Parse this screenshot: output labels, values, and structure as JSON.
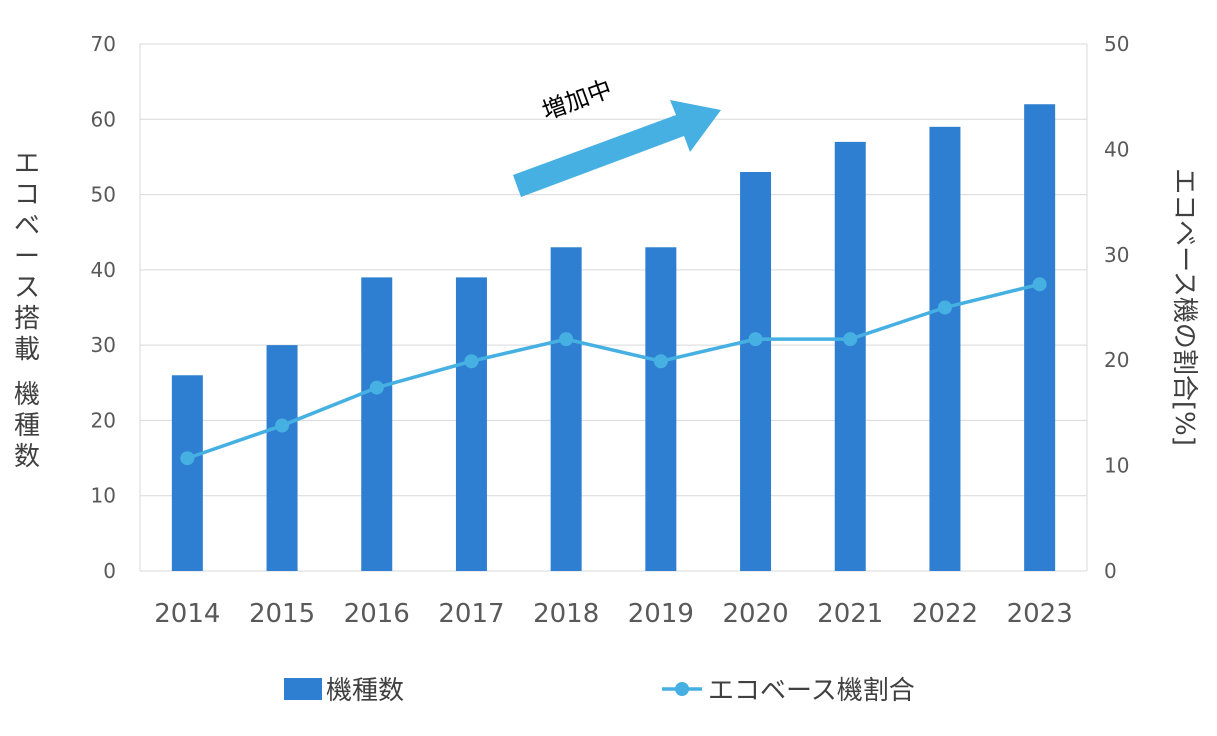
{
  "chart_data": {
    "type": "bar+line",
    "categories": [
      "2014",
      "2015",
      "2016",
      "2017",
      "2018",
      "2019",
      "2020",
      "2021",
      "2022",
      "2023"
    ],
    "series": [
      {
        "name": "機種数",
        "type": "bar",
        "axis": "left",
        "color": "#2e7fd1",
        "values": [
          26,
          30,
          39,
          39,
          43,
          43,
          53,
          57,
          59,
          62
        ]
      },
      {
        "name": "エコベース機割合",
        "type": "line",
        "axis": "right",
        "color": "#45b0e1",
        "values": [
          10.7,
          13.8,
          17.4,
          19.9,
          22.0,
          19.9,
          22.0,
          22.0,
          25.0,
          27.2
        ]
      }
    ],
    "ylabel_left": "エコベース搭載 機種数",
    "ylabel_right": "エコベース機の割合[%]",
    "ylim_left": [
      0,
      70
    ],
    "ylim_right": [
      0,
      50
    ],
    "yticks_left": [
      "0",
      "10",
      "20",
      "30",
      "40",
      "50",
      "60",
      "70"
    ],
    "yticks_right": [
      "0",
      "10",
      "20",
      "30",
      "40",
      "50"
    ],
    "grid": true,
    "legend_position": "bottom",
    "annotation": {
      "text": "増加中",
      "arrow_color": "#45b0e1"
    }
  }
}
